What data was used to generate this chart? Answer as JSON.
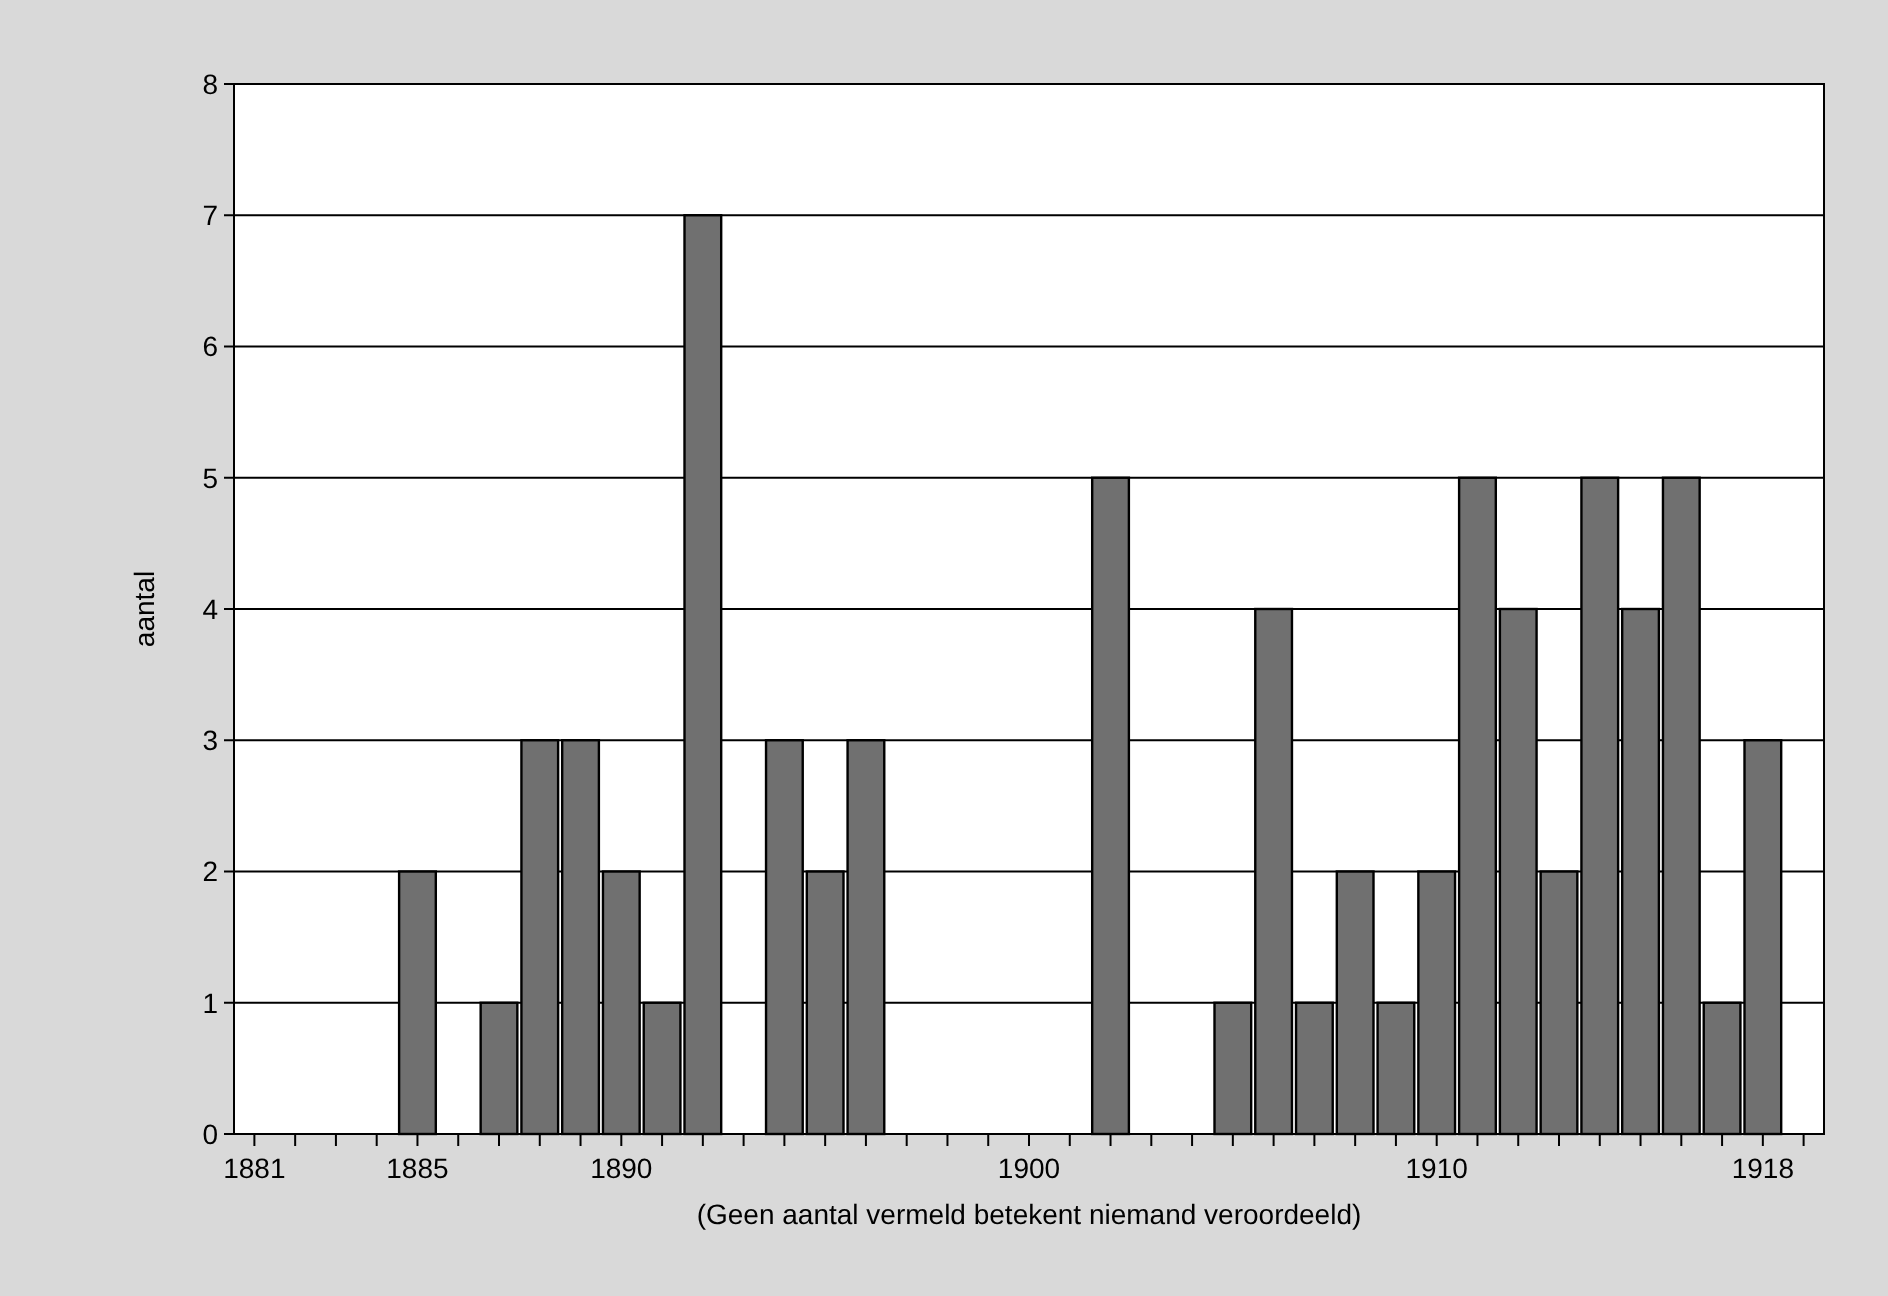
{
  "chart_data": {
    "type": "bar",
    "ylabel": "aantal",
    "xlabel": "(Geen aantal vermeld betekent niemand veroordeeld)",
    "categories": [
      "1881",
      null,
      null,
      null,
      "1885",
      null,
      null,
      null,
      null,
      "1890",
      null,
      null,
      null,
      null,
      null,
      null,
      null,
      null,
      null,
      "1900",
      null,
      null,
      null,
      null,
      null,
      null,
      null,
      null,
      null,
      "1910",
      null,
      null,
      null,
      null,
      null,
      null,
      null,
      "1918",
      null
    ],
    "values": [
      0,
      0,
      0,
      0,
      2,
      0,
      1,
      3,
      3,
      2,
      1,
      7,
      0,
      3,
      2,
      3,
      0,
      0,
      0,
      0,
      0,
      5,
      0,
      0,
      1,
      4,
      1,
      2,
      1,
      2,
      5,
      4,
      2,
      5,
      4,
      5,
      1,
      3,
      0
    ],
    "color": "#707070",
    "ylim": [
      0,
      8
    ],
    "yticks": [
      0,
      1,
      2,
      3,
      4,
      5,
      6,
      7,
      8
    ],
    "grid": "y"
  }
}
